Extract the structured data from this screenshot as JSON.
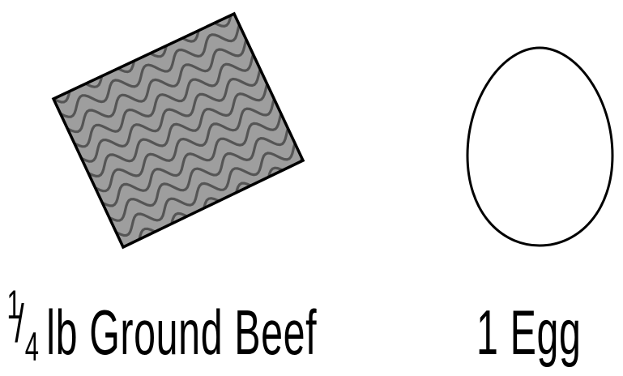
{
  "ingredients": [
    {
      "icon": "ground-beef-icon",
      "fraction_numerator": "1",
      "fraction_slash": "/",
      "fraction_denominator": "4",
      "label": "lb Ground Beef"
    },
    {
      "icon": "egg-icon",
      "label": "1 Egg"
    }
  ],
  "colors": {
    "beef_fill": "#9e9e9e",
    "beef_waves": "#555555",
    "outline": "#000000",
    "egg_fill": "#ffffff",
    "text": "#000000"
  }
}
